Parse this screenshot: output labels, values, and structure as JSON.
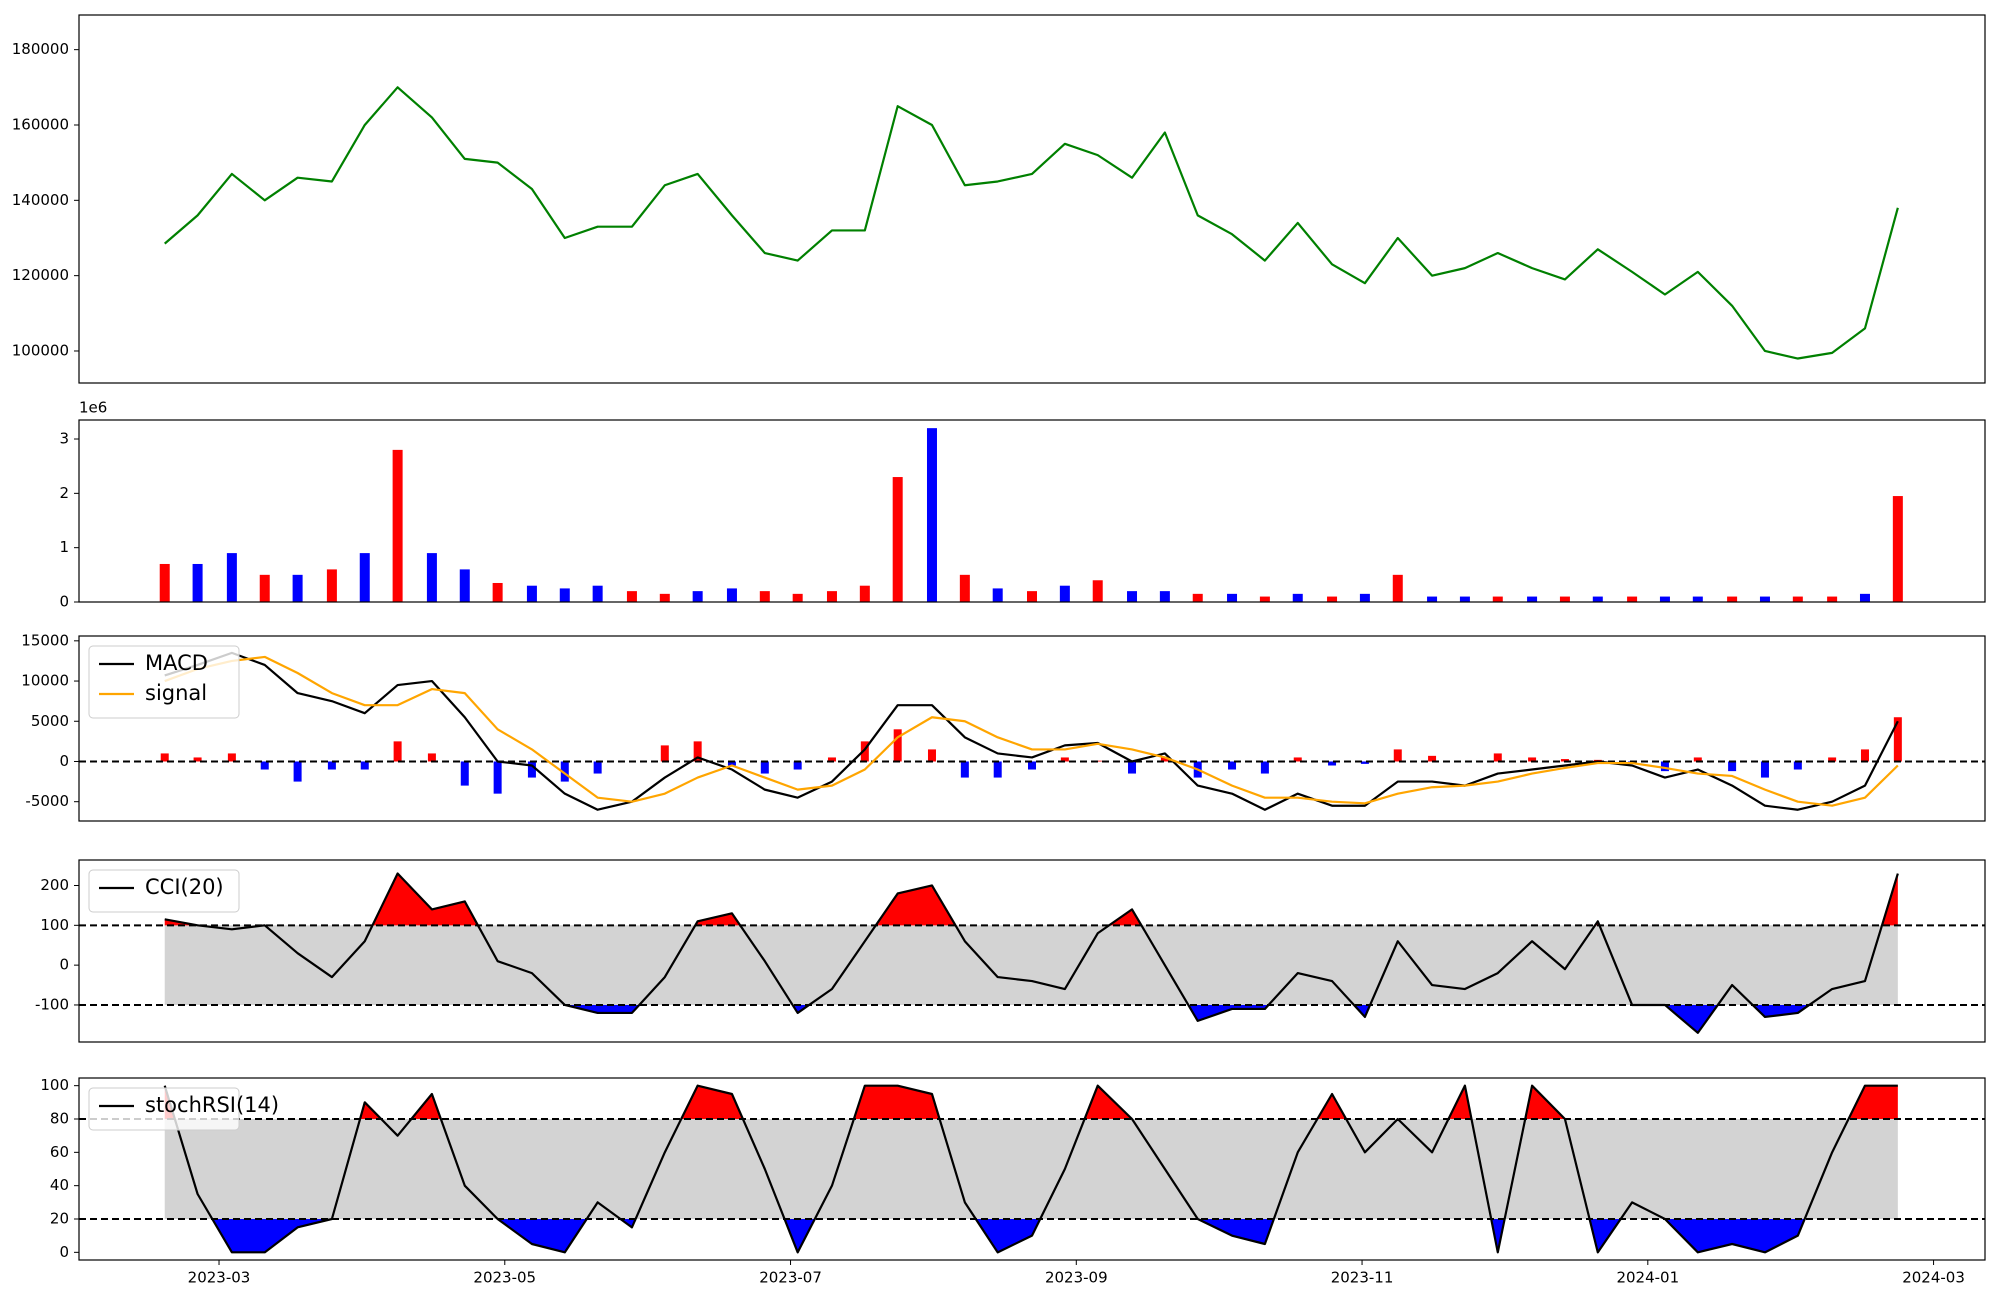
{
  "chart_data": [
    {
      "type": "line",
      "color": "green",
      "values": [
        128500,
        136000,
        147000,
        140000,
        146000,
        145000,
        160000,
        170000,
        162000,
        151000,
        150000,
        143000,
        130000,
        133000,
        133000,
        144000,
        147000,
        136000,
        126000,
        124000,
        132000,
        132000,
        165000,
        160000,
        144000,
        145000,
        147000,
        155000,
        152000,
        146000,
        158000,
        136000,
        131000,
        124000,
        134000,
        123000,
        118000,
        130000,
        120000,
        122000,
        126000,
        122000,
        119000,
        127000,
        121000,
        115000,
        121000,
        112000,
        100000,
        98000,
        99500,
        106000,
        138000
      ],
      "ylim": [
        91500,
        189200
      ],
      "yticks": [
        100000,
        120000,
        140000,
        160000,
        180000
      ]
    },
    {
      "type": "bar",
      "offset_label": "1e6",
      "values": [
        0.7,
        0.7,
        0.9,
        0.5,
        0.5,
        0.6,
        0.9,
        2.8,
        0.9,
        0.6,
        0.35,
        0.3,
        0.25,
        0.3,
        0.2,
        0.15,
        0.2,
        0.25,
        0.2,
        0.15,
        0.2,
        0.3,
        2.3,
        3.2,
        0.5,
        0.25,
        0.2,
        0.3,
        0.4,
        0.2,
        0.2,
        0.15,
        0.15,
        0.1,
        0.15,
        0.1,
        0.15,
        0.5,
        0.1,
        0.1,
        0.1,
        0.1,
        0.1,
        0.1,
        0.1,
        0.1,
        0.1,
        0.1,
        0.1,
        0.1,
        0.1,
        0.15,
        1.95
      ],
      "colors": [
        "red",
        "blue",
        "blue",
        "red",
        "blue",
        "red",
        "blue",
        "red",
        "blue",
        "blue",
        "red",
        "blue",
        "blue",
        "blue",
        "red",
        "red",
        "blue",
        "blue",
        "red",
        "red",
        "red",
        "red",
        "red",
        "blue",
        "red",
        "blue",
        "red",
        "blue",
        "red",
        "blue",
        "blue",
        "red",
        "blue",
        "red",
        "blue",
        "red",
        "blue",
        "red",
        "blue",
        "blue",
        "red",
        "blue",
        "red",
        "blue",
        "red",
        "blue",
        "blue",
        "red",
        "blue",
        "red",
        "red",
        "blue",
        "red"
      ],
      "ylim": [
        0,
        3.35
      ],
      "yticks": [
        0,
        1,
        2,
        3
      ]
    },
    {
      "type": "line",
      "legend": "upper left",
      "hlines": [
        0
      ],
      "series": [
        {
          "name": "MACD",
          "color": "black",
          "values": [
            10700,
            12000,
            13500,
            12000,
            8500,
            7500,
            6000,
            9500,
            10000,
            5500,
            0,
            -500,
            -4000,
            -6000,
            -5000,
            -2000,
            500,
            -1000,
            -3500,
            -4500,
            -2500,
            1500,
            7000,
            7000,
            3000,
            1000,
            500,
            2000,
            2300,
            0,
            1000,
            -3000,
            -4000,
            -6000,
            -4000,
            -5500,
            -5500,
            -2500,
            -2500,
            -3000,
            -1500,
            -1000,
            -500,
            0,
            -500,
            -2000,
            -1000,
            -3000,
            -5500,
            -6000,
            -5000,
            -3000,
            5000
          ]
        },
        {
          "name": "signal",
          "color": "orange",
          "values": [
            10000,
            11500,
            12500,
            13000,
            11000,
            8500,
            7000,
            7000,
            9000,
            8500,
            4000,
            1500,
            -1500,
            -4500,
            -5000,
            -4000,
            -2000,
            -500,
            -2000,
            -3500,
            -3000,
            -1000,
            3000,
            5500,
            5000,
            3000,
            1500,
            1500,
            2200,
            1500,
            500,
            -1000,
            -3000,
            -4500,
            -4500,
            -5000,
            -5200,
            -4000,
            -3200,
            -3000,
            -2500,
            -1500,
            -800,
            -200,
            -200,
            -800,
            -1500,
            -1800,
            -3500,
            -5000,
            -5500,
            -4500,
            -500
          ]
        }
      ],
      "histogram": {
        "pos_color": "red",
        "neg_color": "blue",
        "values": [
          1000,
          500,
          1000,
          -1000,
          -2500,
          -1000,
          -1000,
          2500,
          1000,
          -3000,
          -4000,
          -2000,
          -2500,
          -1500,
          0,
          2000,
          2500,
          -500,
          -1500,
          -1000,
          500,
          2500,
          4000,
          1500,
          -2000,
          -2000,
          -1000,
          500,
          100,
          -1500,
          500,
          -2000,
          -1000,
          -1500,
          500,
          -500,
          -300,
          1500,
          700,
          0,
          1000,
          500,
          300,
          200,
          -300,
          -1200,
          500,
          -1200,
          -2000,
          -1000,
          500,
          1500,
          5500
        ]
      },
      "ylim": [
        -7400,
        15600
      ],
      "yticks": [
        -5000,
        0,
        5000,
        10000,
        15000
      ]
    },
    {
      "type": "line",
      "legend": "upper left",
      "band": [
        -100,
        100
      ],
      "band_color": "lightgray",
      "above_color": "red",
      "below_color": "blue",
      "series": [
        {
          "name": "CCI(20)",
          "color": "black",
          "values": [
            115,
            100,
            90,
            100,
            30,
            -30,
            60,
            230,
            140,
            160,
            10,
            -20,
            -100,
            -120,
            -120,
            -30,
            110,
            130,
            10,
            -120,
            -60,
            60,
            180,
            200,
            60,
            -30,
            -40,
            -60,
            80,
            140,
            0,
            -140,
            -110,
            -110,
            -20,
            -40,
            -130,
            60,
            -50,
            -60,
            -20,
            60,
            -10,
            110,
            -100,
            -100,
            -170,
            -50,
            -130,
            -120,
            -60,
            -40,
            230
          ]
        }
      ],
      "ylim": [
        -193,
        264
      ],
      "yticks": [
        -100,
        0,
        100,
        200
      ]
    },
    {
      "type": "line",
      "legend": "upper left",
      "band": [
        20,
        80
      ],
      "band_color": "lightgray",
      "above_color": "red",
      "below_color": "blue",
      "series": [
        {
          "name": "stochRSI(14)",
          "color": "black",
          "values": [
            100,
            35,
            0,
            0,
            15,
            20,
            90,
            70,
            95,
            40,
            20,
            5,
            0,
            30,
            15,
            60,
            100,
            95,
            50,
            0,
            40,
            100,
            100,
            95,
            30,
            0,
            10,
            50,
            100,
            80,
            50,
            20,
            10,
            5,
            60,
            95,
            60,
            80,
            60,
            100,
            0,
            100,
            80,
            0,
            30,
            20,
            0,
            5,
            0,
            10,
            60,
            100,
            100
          ]
        }
      ],
      "ylim": [
        -4.6,
        104.6
      ],
      "yticks": [
        0,
        20,
        40,
        60,
        80,
        100
      ],
      "x": [
        -0.38,
        -0.15,
        0.09,
        0.32,
        0.55,
        0.79,
        1.02,
        1.25,
        1.49,
        1.72,
        1.95,
        2.19,
        2.42,
        2.65,
        2.89,
        3.12,
        3.35,
        3.59,
        3.82,
        4.05,
        4.29,
        4.52,
        4.75,
        4.99,
        5.22,
        5.45,
        5.69,
        5.92,
        6.15,
        6.39,
        6.62,
        6.85,
        7.09,
        7.32,
        7.55,
        7.79,
        8.02,
        8.25,
        8.49,
        8.72,
        8.95,
        9.19,
        9.42,
        9.65,
        9.89,
        10.12,
        10.35,
        10.59,
        10.82,
        11.05,
        11.29,
        11.52,
        11.75
      ],
      "xlim": [
        -0.98,
        12.36
      ],
      "xticks": [
        {
          "value": 0,
          "label": "2023-03"
        },
        {
          "value": 2,
          "label": "2023-05"
        },
        {
          "value": 4,
          "label": "2023-07"
        },
        {
          "value": 6,
          "label": "2023-09"
        },
        {
          "value": 8,
          "label": "2023-11"
        },
        {
          "value": 10,
          "label": "2024-01"
        },
        {
          "value": 12,
          "label": "2024-03"
        }
      ]
    }
  ]
}
